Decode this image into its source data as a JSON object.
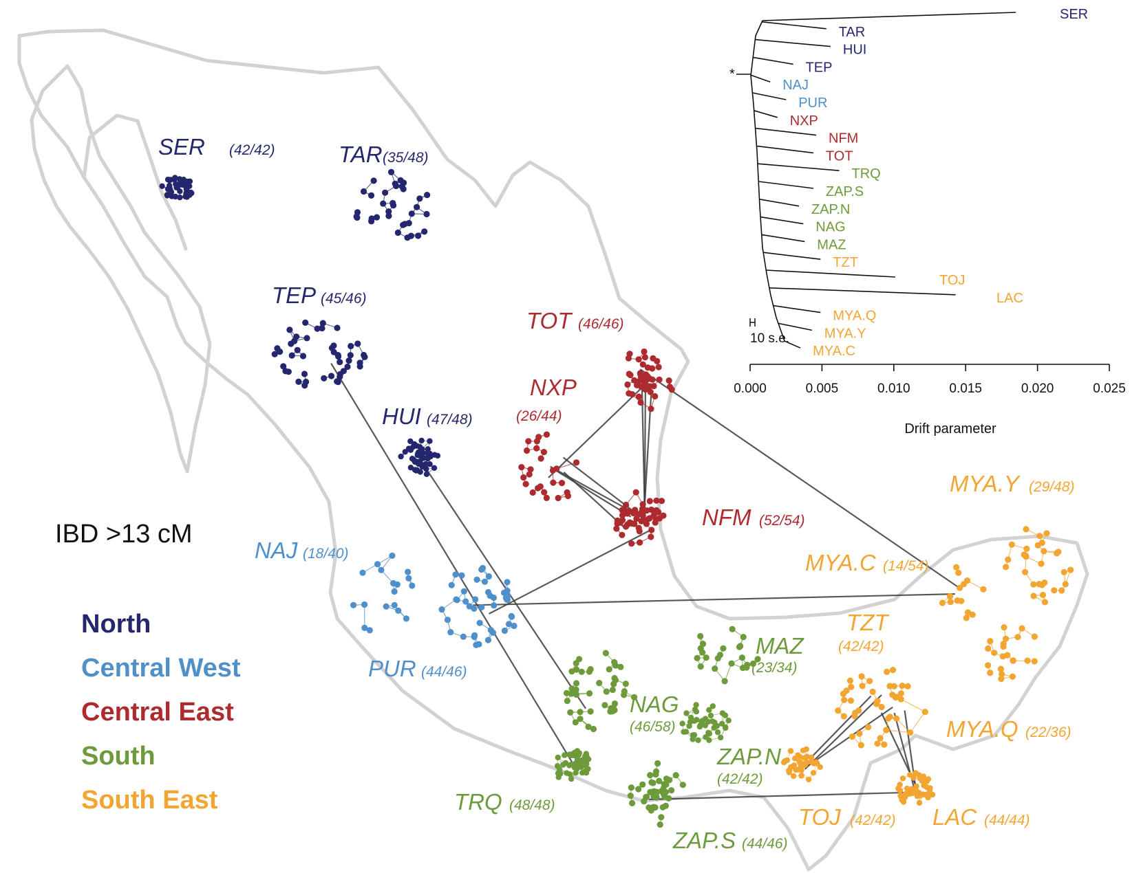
{
  "colors": {
    "North": "#25276e",
    "Central West": "#4f8fca",
    "Central East": "#ad2a2e",
    "South": "#6d9a3a",
    "South East": "#f2a531",
    "map": "#d2d2d2",
    "link": "#3c3c3c"
  },
  "ibd_label": "IBD >13 cM",
  "legend": [
    {
      "region": "North",
      "label": "North"
    },
    {
      "region": "Central West",
      "label": "Central West"
    },
    {
      "region": "Central East",
      "label": "Central East"
    },
    {
      "region": "South",
      "label": "South"
    },
    {
      "region": "South East",
      "label": "South East"
    }
  ],
  "populations": [
    {
      "id": "SER",
      "name": "SER",
      "count": "(42/42)",
      "region": "North",
      "cluster": "dense"
    },
    {
      "id": "TAR",
      "name": "TAR",
      "count": "(35/48)",
      "region": "North",
      "cluster": "loose"
    },
    {
      "id": "TEP",
      "name": "TEP",
      "count": "(45/46)",
      "region": "North",
      "cluster": "loose"
    },
    {
      "id": "HUI",
      "name": "HUI",
      "count": "(47/48)",
      "region": "North",
      "cluster": "dense"
    },
    {
      "id": "NAJ",
      "name": "NAJ",
      "count": "(18/40)",
      "region": "Central West",
      "cluster": "loose"
    },
    {
      "id": "PUR",
      "name": "PUR",
      "count": "(44/46)",
      "region": "Central West",
      "cluster": "loose"
    },
    {
      "id": "TOT",
      "name": "TOT",
      "count": "(46/46)",
      "region": "Central East",
      "cluster": "mixed"
    },
    {
      "id": "NXP",
      "name": "NXP",
      "count": "(26/44)",
      "region": "Central East",
      "cluster": "loose"
    },
    {
      "id": "NFM",
      "name": "NFM",
      "count": "(52/54)",
      "region": "Central East",
      "cluster": "mixed"
    },
    {
      "id": "TRQ",
      "name": "TRQ",
      "count": "(48/48)",
      "region": "South",
      "cluster": "dense"
    },
    {
      "id": "NAG",
      "name": "NAG",
      "count": "(46/58)",
      "region": "South",
      "cluster": "loose"
    },
    {
      "id": "MAZ",
      "name": "MAZ",
      "count": "(23/34)",
      "region": "South",
      "cluster": "loose"
    },
    {
      "id": "ZAP.N",
      "name": "ZAP.N",
      "count": "(42/42)",
      "region": "South",
      "cluster": "dense"
    },
    {
      "id": "ZAP.S",
      "name": "ZAP.S",
      "count": "(44/46)",
      "region": "South",
      "cluster": "mixed"
    },
    {
      "id": "TZT",
      "name": "TZT",
      "count": "(42/42)",
      "region": "South East",
      "cluster": "loose"
    },
    {
      "id": "MYA.Y",
      "name": "MYA.Y",
      "count": "(29/48)",
      "region": "South East",
      "cluster": "loose"
    },
    {
      "id": "MYA.C",
      "name": "MYA.C",
      "count": "(14/54)",
      "region": "South East",
      "cluster": "loose"
    },
    {
      "id": "MYA.Q",
      "name": "MYA.Q",
      "count": "(22/36)",
      "region": "South East",
      "cluster": "loose"
    },
    {
      "id": "TOJ",
      "name": "TOJ",
      "count": "(42/42)",
      "region": "South East",
      "cluster": "dense"
    },
    {
      "id": "LAC",
      "name": "LAC",
      "count": "(44/44)",
      "region": "South East",
      "cluster": "dense"
    }
  ],
  "links": [
    [
      "TEP",
      "TRQ"
    ],
    [
      "HUI",
      "NAG"
    ],
    [
      "PUR",
      "NFM"
    ],
    [
      "PUR",
      "MYA.C"
    ],
    [
      "TOT",
      "NFM"
    ],
    [
      "TOT",
      "NFM"
    ],
    [
      "TOT",
      "NFM"
    ],
    [
      "TOT",
      "NXP"
    ],
    [
      "TOT",
      "MYA.C"
    ],
    [
      "NXP",
      "NFM"
    ],
    [
      "NXP",
      "NFM"
    ],
    [
      "NXP",
      "NFM"
    ],
    [
      "NXP",
      "NFM"
    ],
    [
      "ZAP.S",
      "LAC"
    ],
    [
      "TOJ",
      "TZT"
    ],
    [
      "TOJ",
      "TZT"
    ],
    [
      "TOJ",
      "TZT"
    ],
    [
      "TZT",
      "LAC"
    ],
    [
      "TZT",
      "LAC"
    ],
    [
      "TZT",
      "LAC"
    ]
  ],
  "tree": {
    "tips": [
      {
        "label": "SER",
        "region": "North",
        "drift": 0.0185
      },
      {
        "label": "TAR",
        "region": "North",
        "drift": 0.0053
      },
      {
        "label": "HUI",
        "region": "North",
        "drift": 0.0056
      },
      {
        "label": "TEP",
        "region": "North",
        "drift": 0.003
      },
      {
        "label": "NAJ",
        "region": "Central West",
        "drift": 0.0014
      },
      {
        "label": "PUR",
        "region": "Central West",
        "drift": 0.0025
      },
      {
        "label": "NXP",
        "region": "Central East",
        "drift": 0.0019
      },
      {
        "label": "NFM",
        "region": "Central East",
        "drift": 0.0046
      },
      {
        "label": "TOT",
        "region": "Central East",
        "drift": 0.0044
      },
      {
        "label": "TRQ",
        "region": "South",
        "drift": 0.0062
      },
      {
        "label": "ZAP.S",
        "region": "South",
        "drift": 0.0044
      },
      {
        "label": "ZAP.N",
        "region": "South",
        "drift": 0.0034
      },
      {
        "label": "NAG",
        "region": "South",
        "drift": 0.0037
      },
      {
        "label": "MAZ",
        "region": "South",
        "drift": 0.0038
      },
      {
        "label": "TZT",
        "region": "South East",
        "drift": 0.0049
      },
      {
        "label": "TOJ",
        "region": "South East",
        "drift": 0.0101
      },
      {
        "label": "LAC",
        "region": "South East",
        "drift": 0.0143
      },
      {
        "label": "MYA.Q",
        "region": "South East",
        "drift": 0.0049
      },
      {
        "label": "MYA.Y",
        "region": "South East",
        "drift": 0.0043
      },
      {
        "label": "MYA.C",
        "region": "South East",
        "drift": 0.0035
      }
    ],
    "star": "*",
    "scale_label": "10 s.e.",
    "axis": {
      "label": "Drift parameter",
      "range": [
        0,
        0.025
      ],
      "ticks": [
        "0.000",
        "0.005",
        "0.010",
        "0.015",
        "0.020",
        "0.025"
      ]
    }
  }
}
